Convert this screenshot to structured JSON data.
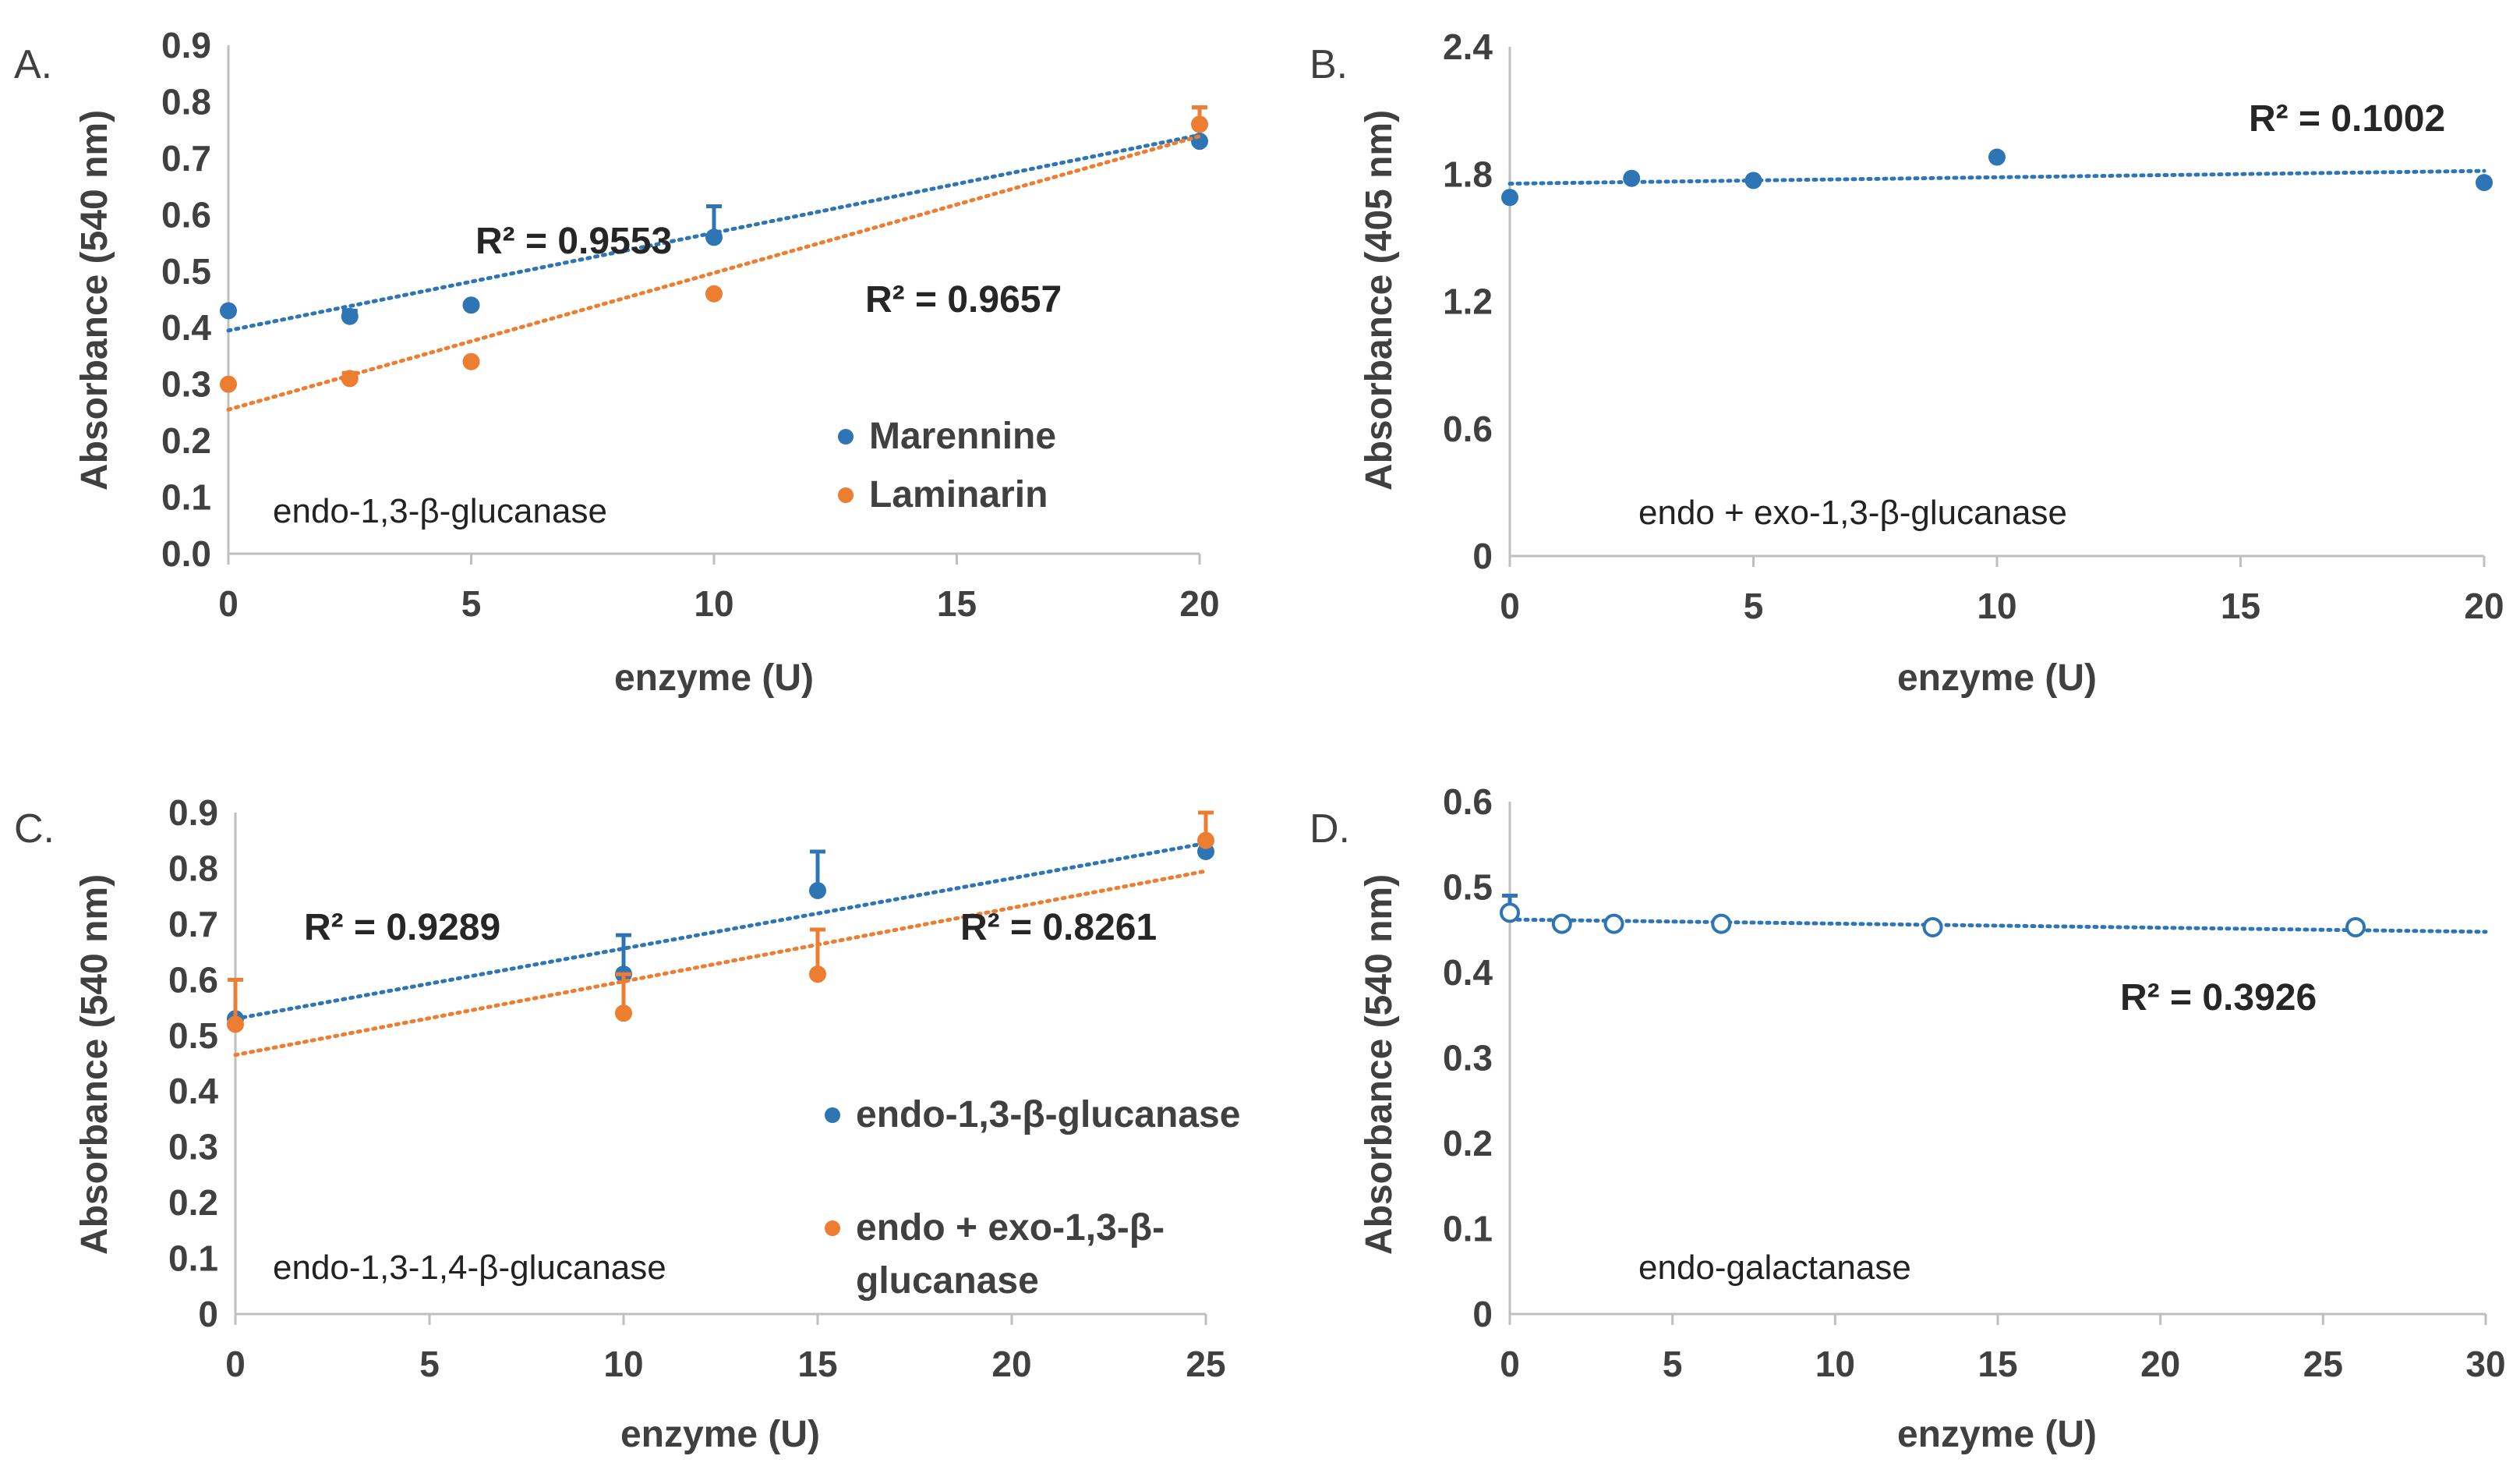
{
  "chart_data": [
    {
      "panel": "A.",
      "type": "scatter",
      "xlabel": "enzyme (U)",
      "ylabel": "Absorbance (540 nm)",
      "xlim": [
        0,
        20
      ],
      "ylim": [
        0,
        0.9
      ],
      "xticks": [
        "0",
        "5",
        "10",
        "15",
        "20"
      ],
      "yticks": [
        "0.0",
        "0.1",
        "0.2",
        "0.3",
        "0.4",
        "0.5",
        "0.6",
        "0.7",
        "0.8",
        "0.9"
      ],
      "annotation": "endo-1,3-β-glucanase",
      "legend_position": "bottom-right",
      "series": [
        {
          "name": "Marennine",
          "color": "#2E75B6",
          "marker": "filled",
          "x": [
            0,
            2.5,
            5,
            10,
            20
          ],
          "y": [
            0.43,
            0.42,
            0.44,
            0.56,
            0.73
          ],
          "err": [
            0,
            0.01,
            0,
            0.055,
            0.06
          ],
          "trend": [
            0.395,
            0.0173
          ],
          "r2": "R² = 0.9553"
        },
        {
          "name": "Laminarin",
          "color": "#ED7D31",
          "marker": "filled",
          "x": [
            0,
            2.5,
            5,
            10,
            20
          ],
          "y": [
            0.3,
            0.31,
            0.34,
            0.46,
            0.76
          ],
          "err": [
            0,
            0.01,
            0,
            0,
            0.03
          ],
          "trend": [
            0.255,
            0.0242
          ],
          "r2": "R² = 0.9657"
        }
      ]
    },
    {
      "panel": "B.",
      "type": "scatter",
      "xlabel": "enzyme (U)",
      "ylabel": "Absorbance (405 nm)",
      "xlim": [
        0,
        20
      ],
      "ylim": [
        0,
        2.4
      ],
      "xticks": [
        "0",
        "5",
        "10",
        "15",
        "20"
      ],
      "yticks": [
        "0",
        "0.6",
        "1.2",
        "1.8",
        "2.4"
      ],
      "annotation": "endo + exo-1,3-β-glucanase",
      "series": [
        {
          "name": "endo + exo-1,3-β-glucanase",
          "color": "#2E75B6",
          "marker": "filled",
          "x": [
            0,
            2.5,
            5,
            10,
            20
          ],
          "y": [
            1.69,
            1.78,
            1.77,
            1.88,
            1.76
          ],
          "err": [
            0,
            0,
            0,
            0,
            0
          ],
          "trend": [
            1.755,
            0.003
          ],
          "r2": "R² = 0.1002"
        }
      ]
    },
    {
      "panel": "C.",
      "type": "scatter",
      "xlabel": "enzyme (U)",
      "ylabel": "Absorbance (540 nm)",
      "xlim": [
        0,
        25
      ],
      "ylim": [
        0,
        0.9
      ],
      "xticks": [
        "0",
        "5",
        "10",
        "15",
        "20",
        "25"
      ],
      "yticks": [
        "0",
        "0.1",
        "0.2",
        "0.3",
        "0.4",
        "0.5",
        "0.6",
        "0.7",
        "0.8",
        "0.9"
      ],
      "annotation": "endo-1,3-1,4-β-glucanase",
      "legend_position": "bottom-right",
      "series": [
        {
          "name": "endo-1,3-β-glucanase",
          "color": "#2E75B6",
          "marker": "filled",
          "x": [
            0,
            10,
            15,
            25
          ],
          "y": [
            0.53,
            0.61,
            0.76,
            0.83
          ],
          "err": [
            0,
            0.07,
            0.07,
            0
          ],
          "trend": [
            0.53,
            0.0126
          ],
          "r2": "R² = 0.9289"
        },
        {
          "name": "endo + exo-1,3-β-glucanase",
          "color": "#ED7D31",
          "marker": "filled",
          "x": [
            0,
            10,
            15,
            25
          ],
          "y": [
            0.52,
            0.54,
            0.61,
            0.85
          ],
          "err": [
            0.08,
            0.07,
            0.08,
            0.05
          ],
          "trend": [
            0.465,
            0.0132
          ],
          "r2": "R² = 0.8261"
        }
      ]
    },
    {
      "panel": "D.",
      "type": "scatter",
      "xlabel": "enzyme (U)",
      "ylabel": "Absorbance (540 nm)",
      "xlim": [
        0,
        30
      ],
      "ylim": [
        0,
        0.6
      ],
      "xticks": [
        "0",
        "5",
        "10",
        "15",
        "20",
        "25",
        "30"
      ],
      "yticks": [
        "0",
        "0.1",
        "0.2",
        "0.3",
        "0.4",
        "0.5",
        "0.6"
      ],
      "annotation": "endo-galactanase",
      "series": [
        {
          "name": "endo-galactanase",
          "color": "#2E75B6",
          "marker": "open",
          "x": [
            0,
            1.6,
            3.2,
            6.5,
            13,
            26
          ],
          "y": [
            0.47,
            0.457,
            0.457,
            0.457,
            0.453,
            0.453
          ],
          "err": [
            0.02,
            0,
            0,
            0,
            0,
            0
          ],
          "trend": [
            0.462,
            -0.00048
          ],
          "r2": "R² = 0.3926"
        }
      ]
    }
  ]
}
